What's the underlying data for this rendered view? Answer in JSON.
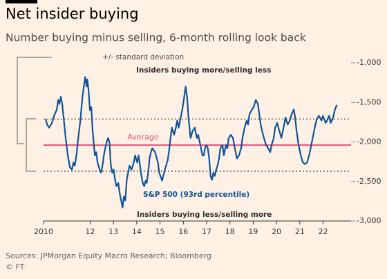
{
  "chart_data": {
    "type": "line",
    "title": "Net insider buying",
    "subtitle": "Number buying minus selling, 6-month rolling look back",
    "source": "Sources: JPMorgan Equity Macro Research; Bloomberg",
    "credit": "© FT",
    "annotations": [
      "+/- standard deviation",
      "Insiders buying more/selling less",
      "Insiders buying less/selling more"
    ],
    "hlines": [
      {
        "value": -2040,
        "label": "Average",
        "color": "#e3537b",
        "style": "solid"
      },
      {
        "value": -1710,
        "color": "#33302e",
        "style": "dotted"
      },
      {
        "value": -2370,
        "color": "#33302e",
        "style": "dotted"
      }
    ],
    "xlim": [
      2010,
      2023.2
    ],
    "xticks": [
      {
        "value": 2010,
        "label": "2010"
      },
      {
        "value": 2012,
        "label": "12"
      },
      {
        "value": 2013,
        "label": "13"
      },
      {
        "value": 2014,
        "label": "14"
      },
      {
        "value": 2015,
        "label": "15"
      },
      {
        "value": 2016,
        "label": "16"
      },
      {
        "value": 2017,
        "label": "17"
      },
      {
        "value": 2018,
        "label": "18"
      },
      {
        "value": 2019,
        "label": "19"
      },
      {
        "value": 2020,
        "label": "20"
      },
      {
        "value": 2021,
        "label": "21"
      },
      {
        "value": 2022,
        "label": "22"
      }
    ],
    "ylim": [
      -3000,
      -1000
    ],
    "yticks": [
      {
        "value": -1000,
        "label": "-1,000"
      },
      {
        "value": -1500,
        "label": "-1,500"
      },
      {
        "value": -2000,
        "label": "-2,000"
      },
      {
        "value": -2500,
        "label": "-2,500"
      },
      {
        "value": -3000,
        "label": "-3,000"
      }
    ],
    "x": [
      2010.09,
      2010.15,
      2010.24,
      2010.36,
      2010.45,
      2010.57,
      2010.63,
      2010.68,
      2010.74,
      2010.8,
      2010.86,
      2010.95,
      2011.04,
      2011.13,
      2011.22,
      2011.28,
      2011.34,
      2011.43,
      2011.49,
      2011.58,
      2011.67,
      2011.73,
      2011.79,
      2011.85,
      2011.88,
      2011.93,
      2011.99,
      2012.05,
      2012.11,
      2012.2,
      2012.26,
      2012.32,
      2012.41,
      2012.47,
      2012.53,
      2012.59,
      2012.65,
      2012.71,
      2012.77,
      2012.83,
      2012.89,
      2012.95,
      2013.01,
      2013.07,
      2013.13,
      2013.21,
      2013.27,
      2013.33,
      2013.39,
      2013.45,
      2013.51,
      2013.57,
      2013.63,
      2013.69,
      2013.78,
      2013.87,
      2013.93,
      2014.02,
      2014.08,
      2014.14,
      2014.2,
      2014.26,
      2014.32,
      2014.38,
      2014.43,
      2014.49,
      2014.55,
      2014.61,
      2014.67,
      2014.79,
      2014.91,
      2014.97,
      2015.09,
      2015.21,
      2015.33,
      2015.39,
      2015.45,
      2015.51,
      2015.6,
      2015.68,
      2015.74,
      2015.8,
      2015.86,
      2015.95,
      2016.04,
      2016.1,
      2016.16,
      2016.22,
      2016.31,
      2016.4,
      2016.49,
      2016.58,
      2016.64,
      2016.7,
      2016.76,
      2016.82,
      2016.88,
      2016.93,
      2016.99,
      2017.05,
      2017.11,
      2017.17,
      2017.23,
      2017.29,
      2017.35,
      2017.41,
      2017.47,
      2017.53,
      2017.59,
      2017.68,
      2017.74,
      2017.83,
      2017.89,
      2017.95,
      2018.04,
      2018.13,
      2018.21,
      2018.3,
      2018.39,
      2018.48,
      2018.54,
      2018.63,
      2018.72,
      2018.78,
      2018.84,
      2018.93,
      2019.02,
      2019.11,
      2019.2,
      2019.26,
      2019.32,
      2019.38,
      2019.46,
      2019.55,
      2019.64,
      2019.73,
      2019.79,
      2019.88,
      2019.94,
      2020.03,
      2020.12,
      2020.21,
      2020.3,
      2020.39,
      2020.48,
      2020.57,
      2020.65,
      2020.74,
      2020.8,
      2020.86,
      2020.95,
      2021.04,
      2021.13,
      2021.22,
      2021.31,
      2021.4,
      2021.49,
      2021.58,
      2021.67,
      2021.73,
      2021.82,
      2021.93,
      2021.99,
      2022.11,
      2022.17,
      2022.26,
      2022.32,
      2022.41,
      2022.5,
      2022.59
    ],
    "series": [
      {
        "name": "S&P 500 (93rd percentile)",
        "color": "#0f5499",
        "values": [
          -1710,
          -1780,
          -1820,
          -1760,
          -1670,
          -1590,
          -1470,
          -1520,
          -1430,
          -1520,
          -1690,
          -1950,
          -2170,
          -2320,
          -2350,
          -2260,
          -2300,
          -2130,
          -1950,
          -1730,
          -1430,
          -1300,
          -1180,
          -1300,
          -1210,
          -1340,
          -1600,
          -1560,
          -1860,
          -2170,
          -2130,
          -2260,
          -2350,
          -2390,
          -2300,
          -2170,
          -2080,
          -2000,
          -1950,
          -2000,
          -2300,
          -2390,
          -2350,
          -2480,
          -2560,
          -2520,
          -2650,
          -2740,
          -2830,
          -2690,
          -2740,
          -2480,
          -2390,
          -2300,
          -2350,
          -2260,
          -2170,
          -2260,
          -2170,
          -2300,
          -2430,
          -2520,
          -2560,
          -2490,
          -2520,
          -2390,
          -2210,
          -2130,
          -2080,
          -2130,
          -2260,
          -2390,
          -2490,
          -2350,
          -2230,
          -2110,
          -1950,
          -1820,
          -1910,
          -1820,
          -1730,
          -1820,
          -1730,
          -1600,
          -1430,
          -1300,
          -1430,
          -1690,
          -1950,
          -1860,
          -1820,
          -1950,
          -1910,
          -2000,
          -2080,
          -2170,
          -2170,
          -2080,
          -2040,
          -2080,
          -2210,
          -2430,
          -2480,
          -2390,
          -2430,
          -2350,
          -2300,
          -2210,
          -2080,
          -2040,
          -2170,
          -2040,
          -2080,
          -1950,
          -1910,
          -1950,
          -2080,
          -2210,
          -2170,
          -2080,
          -1950,
          -1820,
          -1730,
          -1780,
          -1650,
          -1600,
          -1560,
          -1470,
          -1520,
          -1650,
          -1780,
          -1860,
          -1950,
          -2040,
          -2080,
          -2130,
          -2040,
          -1950,
          -1820,
          -1760,
          -1860,
          -1950,
          -1820,
          -1690,
          -1780,
          -1730,
          -1650,
          -1590,
          -1690,
          -1860,
          -2040,
          -2170,
          -2260,
          -2280,
          -2260,
          -2170,
          -2040,
          -1910,
          -1780,
          -1710,
          -1670,
          -1730,
          -1670,
          -1760,
          -1730,
          -1670,
          -1760,
          -1710,
          -1600,
          -1530
        ]
      }
    ]
  }
}
